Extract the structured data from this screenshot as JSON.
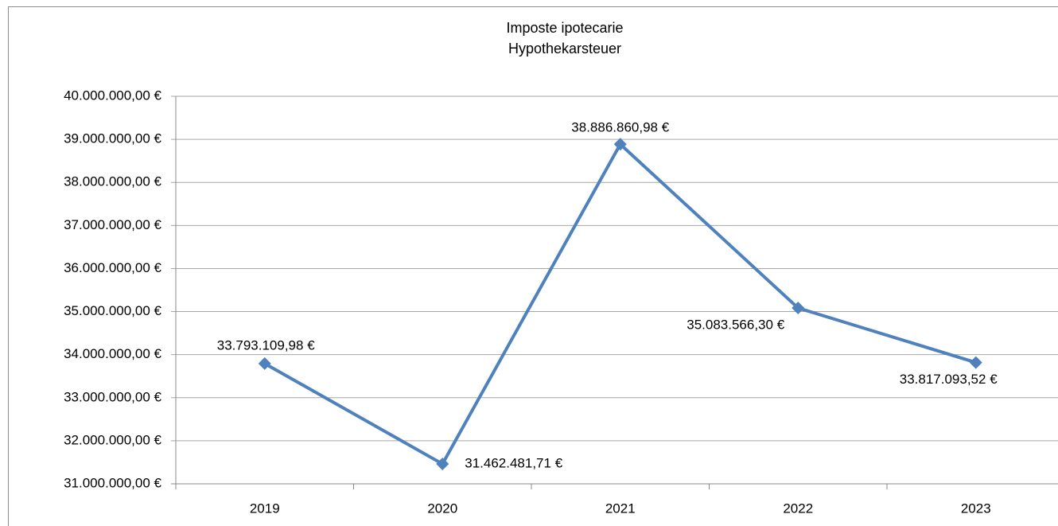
{
  "chart_data": {
    "type": "line",
    "title": "Imposte ipotecarie",
    "subtitle": "Hypothekarsteuer",
    "categories": [
      "2019",
      "2020",
      "2021",
      "2022",
      "2023"
    ],
    "series": [
      {
        "name": "Hypothekarsteuer",
        "color": "#4f81bd",
        "values": [
          33793109.98,
          31462481.71,
          38886860.98,
          35083566.3,
          33817093.52
        ],
        "value_labels": [
          "33.793.109,98 €",
          "31.462.481,71 €",
          "38.886.860,98 €",
          "35.083.566,30 €",
          "33.817.093,52 €"
        ]
      }
    ],
    "ylim": [
      31000000,
      40000000
    ],
    "yticks": [
      {
        "value": 31000000,
        "label": "31.000.000,00 €"
      },
      {
        "value": 32000000,
        "label": "32.000.000,00 €"
      },
      {
        "value": 33000000,
        "label": "33.000.000,00 €"
      },
      {
        "value": 34000000,
        "label": "34.000.000,00 €"
      },
      {
        "value": 35000000,
        "label": "35.000.000,00 €"
      },
      {
        "value": 36000000,
        "label": "36.000.000,00 €"
      },
      {
        "value": 37000000,
        "label": "37.000.000,00 €"
      },
      {
        "value": 38000000,
        "label": "38.000.000,00 €"
      },
      {
        "value": 39000000,
        "label": "39.000.000,00 €"
      },
      {
        "value": 40000000,
        "label": "40.000.000,00 €"
      }
    ],
    "grid": true,
    "legend": false
  }
}
